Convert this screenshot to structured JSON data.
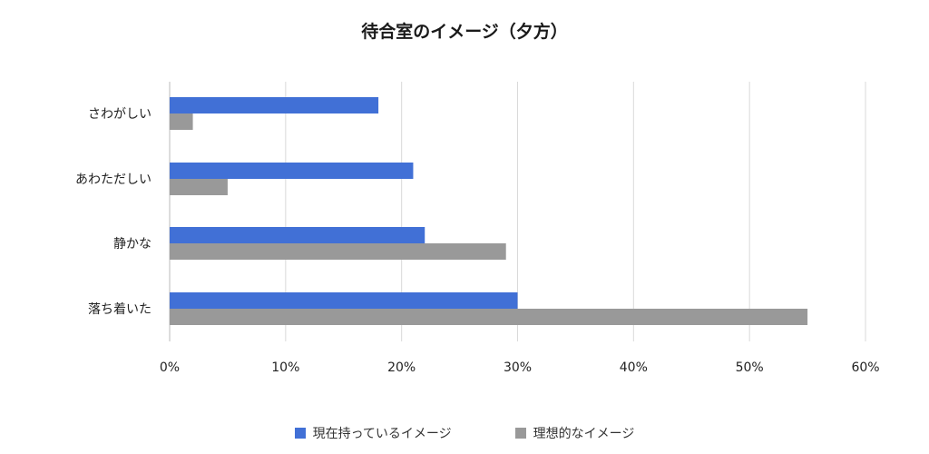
{
  "chart_data": {
    "type": "bar",
    "orientation": "horizontal",
    "title": "待合室のイメージ（夕方）",
    "categories": [
      "さわがしい",
      "あわただしい",
      "静かな",
      "落ち着いた"
    ],
    "series": [
      {
        "name": "現在持っているイメージ",
        "values": [
          18,
          21,
          22,
          30
        ],
        "color": "#4170d6"
      },
      {
        "name": "理想的なイメージ",
        "values": [
          2,
          5,
          29,
          55
        ],
        "color": "#999999"
      }
    ],
    "xlim": [
      0,
      60
    ],
    "xticks": [
      0,
      10,
      20,
      30,
      40,
      50,
      60
    ],
    "xtick_labels": [
      "0%",
      "10%",
      "20%",
      "30%",
      "40%",
      "50%",
      "60%"
    ],
    "grid": "vertical",
    "legend_position": "bottom"
  }
}
